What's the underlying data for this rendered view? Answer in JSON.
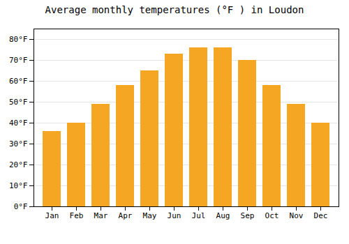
{
  "chart_data": {
    "type": "bar",
    "title": "Average monthly temperatures (°F ) in Loudon",
    "categories": [
      "Jan",
      "Feb",
      "Mar",
      "Apr",
      "May",
      "Jun",
      "Jul",
      "Aug",
      "Sep",
      "Oct",
      "Nov",
      "Dec"
    ],
    "values": [
      36,
      40,
      49,
      58,
      65,
      73,
      76,
      76,
      70,
      58,
      49,
      40
    ],
    "color": "#F5A623",
    "ylim": [
      0,
      85
    ],
    "yticks": [
      {
        "value": 0,
        "label": "0°F"
      },
      {
        "value": 10,
        "label": "10°F"
      },
      {
        "value": 20,
        "label": "20°F"
      },
      {
        "value": 30,
        "label": "30°F"
      },
      {
        "value": 40,
        "label": "40°F"
      },
      {
        "value": 50,
        "label": "50°F"
      },
      {
        "value": 60,
        "label": "60°F"
      },
      {
        "value": 70,
        "label": "70°F"
      },
      {
        "value": 80,
        "label": "80°F"
      }
    ],
    "grid": true
  }
}
